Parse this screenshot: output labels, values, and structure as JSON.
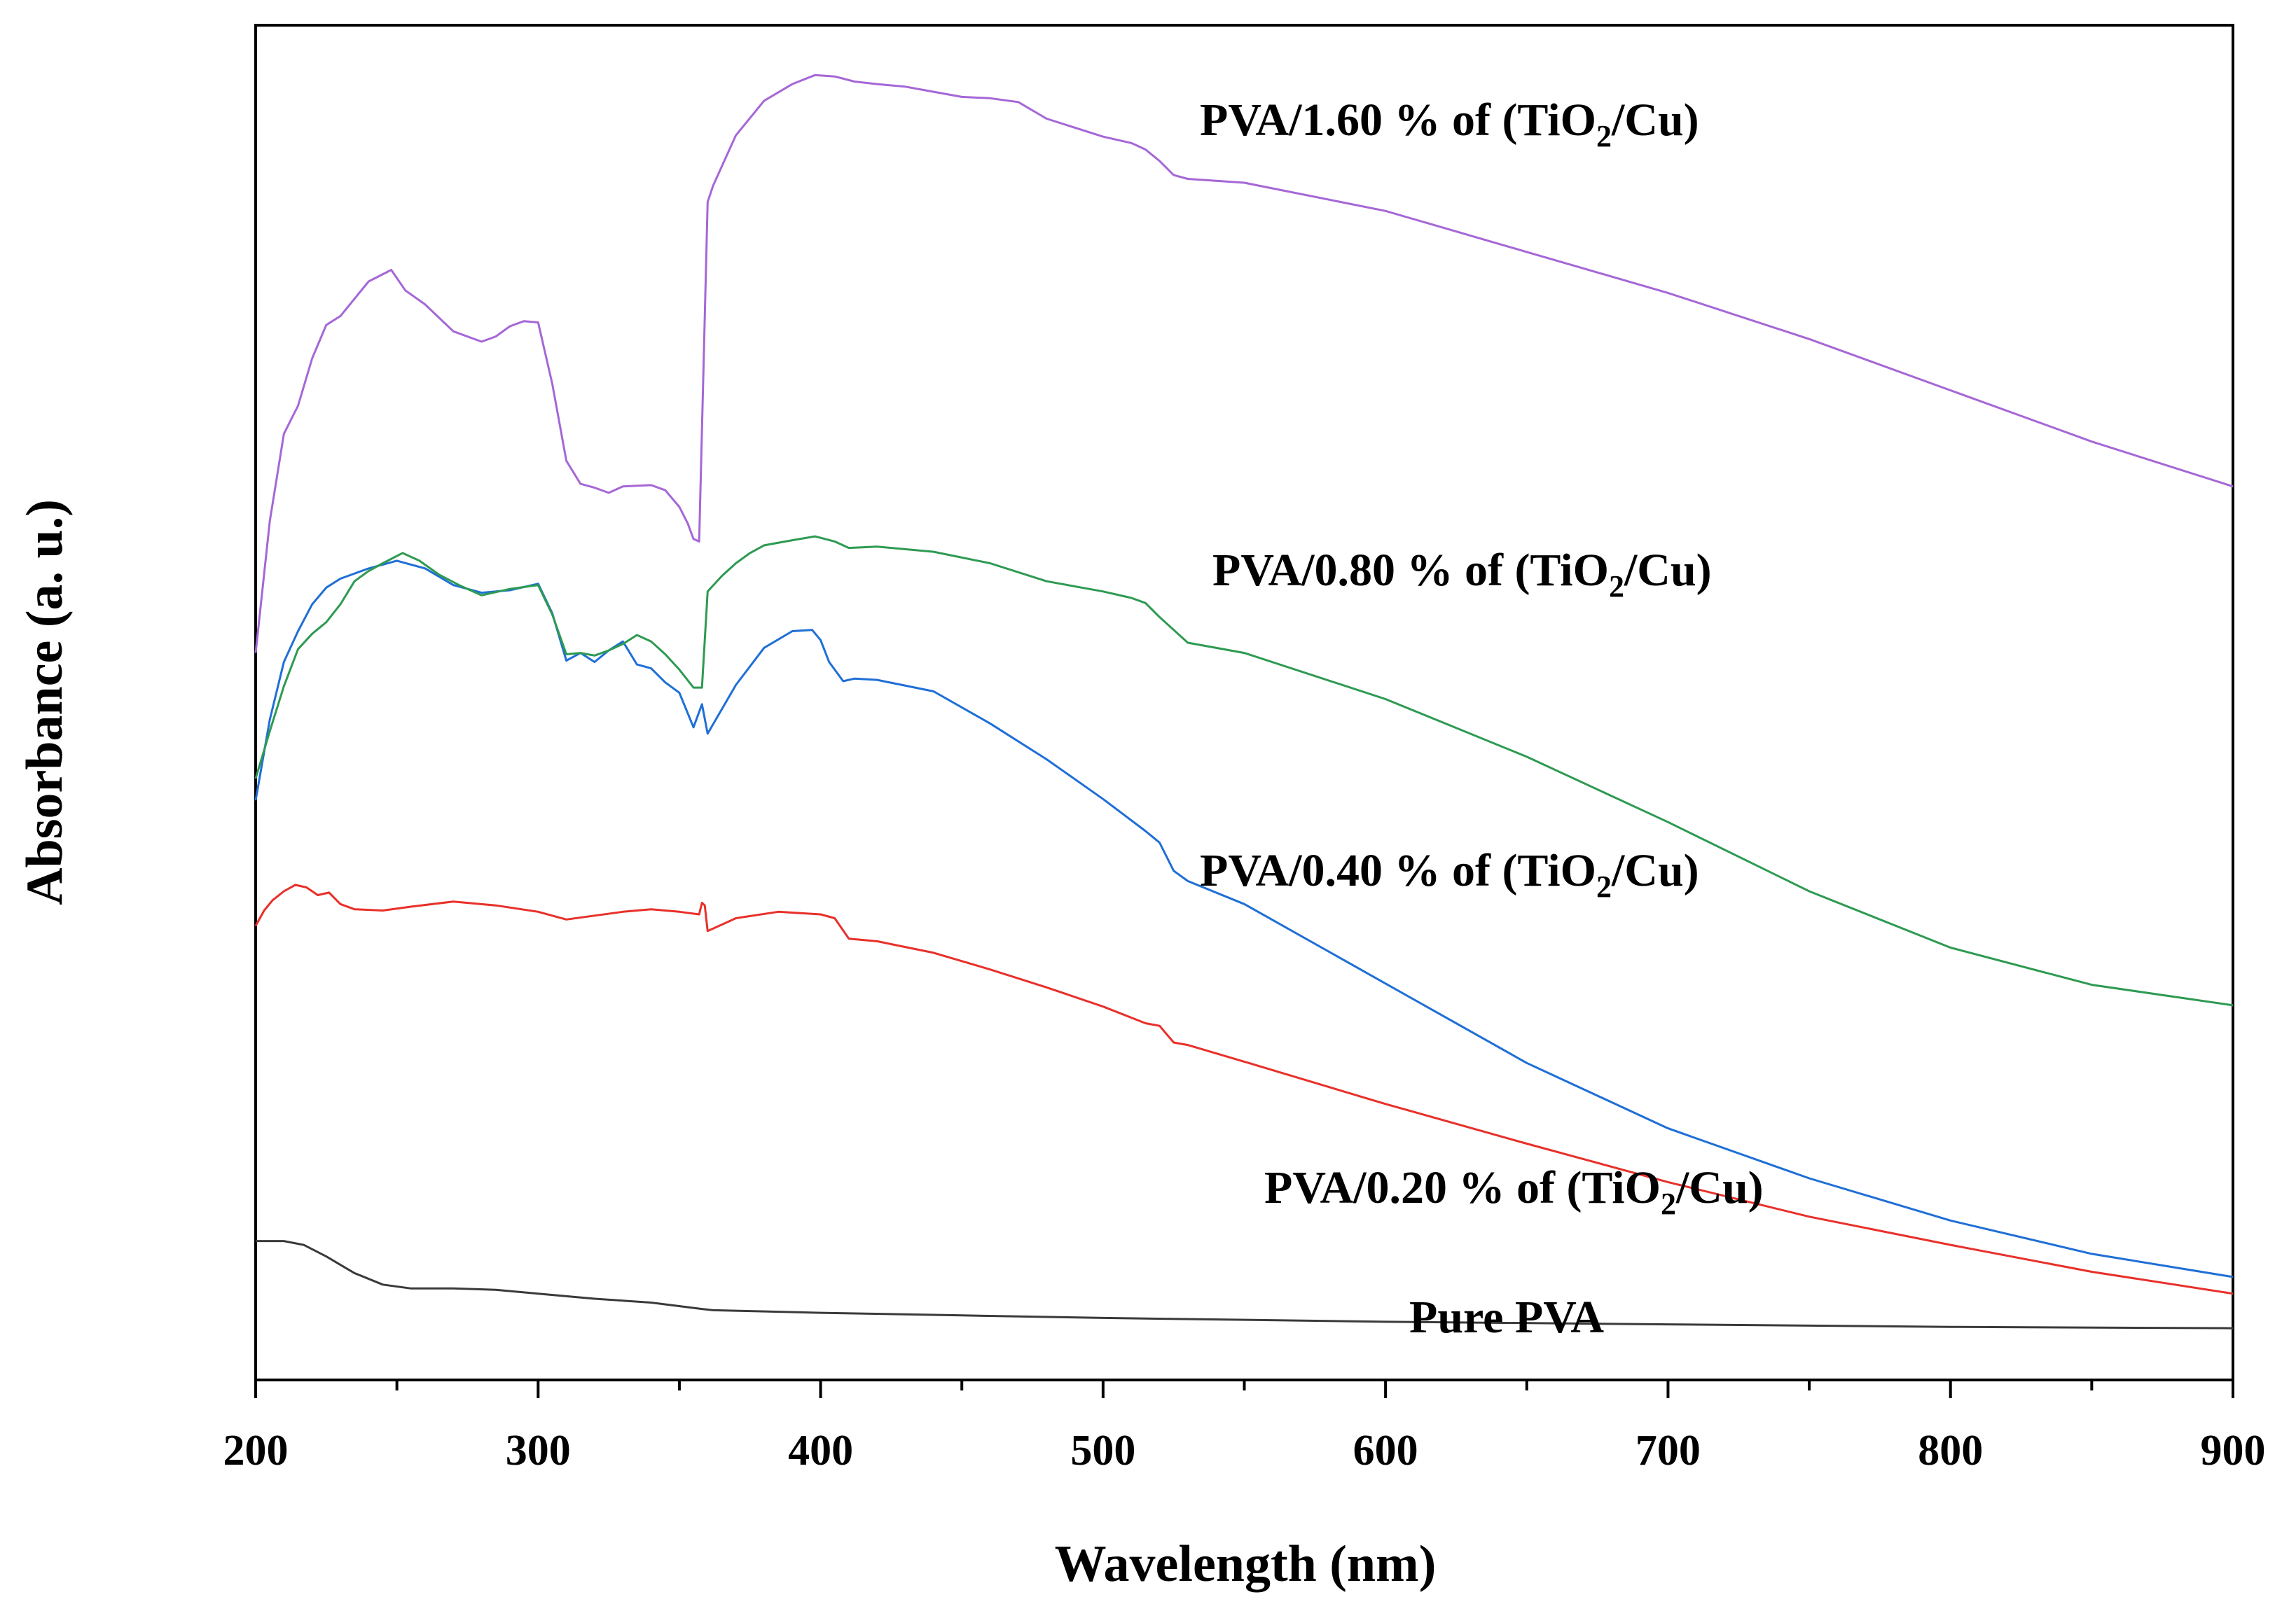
{
  "chart_data": {
    "type": "line",
    "xlabel": "Wavelength (nm)",
    "ylabel": "Absorbance (a. u.)",
    "xlim": [
      200,
      900
    ],
    "ylim": [
      0,
      100
    ],
    "x_ticks": [
      200,
      300,
      400,
      500,
      600,
      700,
      800,
      900
    ],
    "y_ticks_shown": false,
    "series": [
      {
        "name": "Pure PVA",
        "label_parts": [
          "Pure PVA",
          "",
          ""
        ],
        "color": "#3a3a3a",
        "x": [
          200,
          210,
          217,
          225,
          235,
          245,
          255,
          270,
          285,
          300,
          320,
          340,
          358,
          362,
          400,
          450,
          500,
          600,
          700,
          800,
          900
        ],
        "y": [
          8.6,
          8.6,
          8.3,
          7.4,
          6.1,
          5.2,
          4.9,
          4.9,
          4.8,
          4.5,
          4.1,
          3.8,
          3.3,
          3.2,
          3.0,
          2.8,
          2.6,
          2.3,
          2.1,
          1.9,
          1.8
        ]
      },
      {
        "name": "PVA/0.20 % of (TiO2/Cu)",
        "label_parts": [
          "PVA/0.20 % of (TiO",
          "2",
          "/Cu)"
        ],
        "color": "#e8302a",
        "x": [
          200,
          203,
          206,
          210,
          214,
          218,
          222,
          226,
          230,
          235,
          245,
          255,
          270,
          285,
          300,
          310,
          320,
          330,
          340,
          350,
          357,
          358,
          359,
          360,
          370,
          385,
          400,
          405,
          410,
          420,
          440,
          460,
          480,
          500,
          515,
          520,
          525,
          530,
          550,
          600,
          650,
          700,
          750,
          800,
          850,
          900
        ],
        "y": [
          33.2,
          34.4,
          35.2,
          35.9,
          36.4,
          36.2,
          35.6,
          35.8,
          34.9,
          34.5,
          34.4,
          34.7,
          35.1,
          34.8,
          34.3,
          33.7,
          34.0,
          34.3,
          34.5,
          34.3,
          34.1,
          35.0,
          34.8,
          32.8,
          33.8,
          34.3,
          34.1,
          33.8,
          32.2,
          32.0,
          31.1,
          29.8,
          28.4,
          26.9,
          25.6,
          25.4,
          24.1,
          23.9,
          22.6,
          19.3,
          16.2,
          13.2,
          10.5,
          8.3,
          6.2,
          4.5
        ]
      },
      {
        "name": "PVA/0.40 % of (TiO2/Cu)",
        "label_parts": [
          "PVA/0.40 % of (TiO",
          "2",
          "/Cu)"
        ],
        "color": "#1f6fd6",
        "x": [
          200,
          205,
          210,
          215,
          220,
          225,
          230,
          240,
          250,
          260,
          270,
          280,
          290,
          300,
          305,
          310,
          315,
          320,
          325,
          330,
          335,
          340,
          345,
          350,
          355,
          358,
          360,
          370,
          380,
          390,
          397,
          400,
          403,
          408,
          412,
          420,
          440,
          460,
          480,
          500,
          515,
          520,
          525,
          530,
          550,
          600,
          650,
          700,
          750,
          800,
          850,
          900
        ],
        "y": [
          43.0,
          49.3,
          53.8,
          56.2,
          58.3,
          59.6,
          60.3,
          61.1,
          61.7,
          61.1,
          59.8,
          59.2,
          59.4,
          59.9,
          57.6,
          53.9,
          54.5,
          53.8,
          54.7,
          55.4,
          53.6,
          53.3,
          52.2,
          51.4,
          48.7,
          50.5,
          48.2,
          52.0,
          54.9,
          56.2,
          56.3,
          55.5,
          53.8,
          52.3,
          52.5,
          52.4,
          51.5,
          49.0,
          46.2,
          43.1,
          40.6,
          39.7,
          37.5,
          36.7,
          34.9,
          28.7,
          22.5,
          17.4,
          13.5,
          10.2,
          7.6,
          5.8
        ]
      },
      {
        "name": "PVA/0.80 % of (TiO2/Cu)",
        "label_parts": [
          "PVA/0.80 % of (TiO",
          "2",
          "/Cu)"
        ],
        "color": "#2e9a52",
        "x": [
          200,
          205,
          210,
          215,
          220,
          225,
          230,
          235,
          240,
          245,
          252,
          258,
          265,
          272,
          280,
          290,
          300,
          305,
          310,
          315,
          320,
          325,
          330,
          335,
          340,
          345,
          350,
          355,
          358,
          360,
          365,
          370,
          375,
          380,
          390,
          398,
          405,
          410,
          420,
          440,
          460,
          480,
          500,
          510,
          515,
          520,
          525,
          530,
          550,
          600,
          650,
          700,
          750,
          800,
          850,
          900
        ],
        "y": [
          44.7,
          48.4,
          51.9,
          54.8,
          56.0,
          56.9,
          58.3,
          60.1,
          60.9,
          61.5,
          62.3,
          61.7,
          60.6,
          59.8,
          59.0,
          59.5,
          59.8,
          57.5,
          54.4,
          54.5,
          54.3,
          54.7,
          55.2,
          55.9,
          55.4,
          54.4,
          53.2,
          51.8,
          51.8,
          59.3,
          60.5,
          61.5,
          62.3,
          62.9,
          63.3,
          63.6,
          63.2,
          62.7,
          62.8,
          62.4,
          61.5,
          60.1,
          59.3,
          58.8,
          58.4,
          57.3,
          56.3,
          55.3,
          54.5,
          50.9,
          46.4,
          41.3,
          35.9,
          31.5,
          28.6,
          27.0
        ]
      },
      {
        "name": "PVA/1.60 % of (TiO2/Cu)",
        "label_parts": [
          "PVA/1.60 % of (TiO",
          "2",
          "/Cu)"
        ],
        "color": "#a567d6",
        "x": [
          200,
          205,
          210,
          215,
          220,
          225,
          230,
          240,
          248,
          253,
          260,
          270,
          280,
          285,
          290,
          295,
          300,
          305,
          310,
          315,
          320,
          325,
          330,
          340,
          345,
          350,
          353,
          355,
          357,
          360,
          362,
          370,
          380,
          390,
          398,
          405,
          412,
          420,
          430,
          440,
          450,
          460,
          470,
          480,
          500,
          510,
          515,
          520,
          525,
          530,
          550,
          600,
          650,
          700,
          750,
          800,
          850,
          900
        ],
        "y": [
          54.5,
          64.8,
          71.6,
          73.8,
          77.5,
          80.1,
          80.8,
          83.5,
          84.4,
          82.8,
          81.7,
          79.6,
          78.8,
          79.2,
          80.0,
          80.4,
          80.3,
          75.5,
          69.5,
          67.7,
          67.4,
          67.0,
          67.5,
          67.6,
          67.2,
          65.9,
          64.6,
          63.4,
          63.2,
          89.7,
          91.0,
          94.9,
          97.6,
          98.9,
          99.6,
          99.5,
          99.1,
          98.9,
          98.7,
          98.3,
          97.9,
          97.8,
          97.5,
          96.2,
          94.8,
          94.3,
          93.8,
          92.9,
          91.8,
          91.5,
          91.2,
          89.0,
          85.8,
          82.6,
          79.0,
          75.0,
          71.0,
          67.5
        ]
      }
    ]
  }
}
